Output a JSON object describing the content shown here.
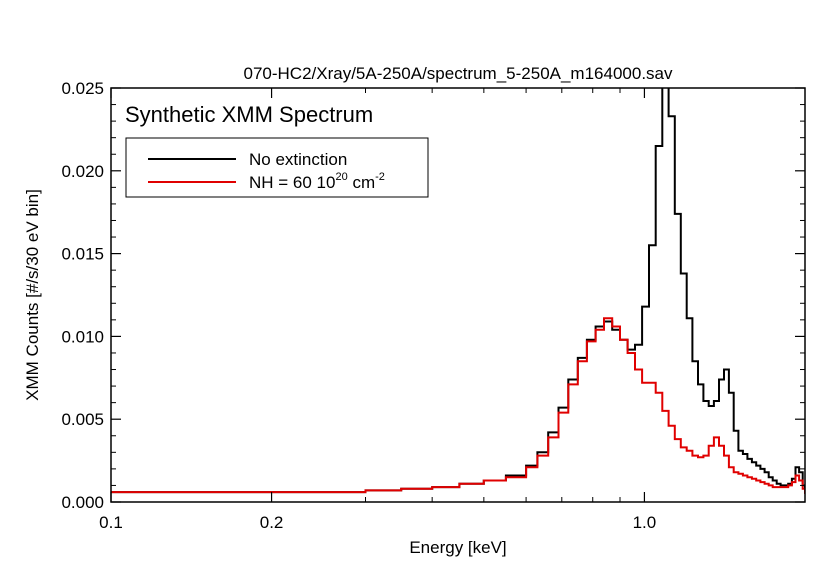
{
  "chart_data": {
    "type": "line",
    "title": "070-HC2/Xray/5A-250A/spectrum_5-250A_m164000.sav",
    "annotation": "Synthetic XMM Spectrum",
    "xlabel": "Energy [keV]",
    "ylabel": "XMM Counts [#/s/30 eV bin]",
    "x_scale": "log",
    "xlim": [
      0.1,
      2.0
    ],
    "ylim": [
      0.0,
      0.025
    ],
    "x_ticks": [
      {
        "value": 0.1,
        "label": "0.1"
      },
      {
        "value": 0.2,
        "label": "0.2"
      },
      {
        "value": 1.0,
        "label": "1.0"
      }
    ],
    "y_ticks": [
      {
        "value": 0.0,
        "label": "0.000"
      },
      {
        "value": 0.005,
        "label": "0.005"
      },
      {
        "value": 0.01,
        "label": "0.010"
      },
      {
        "value": 0.015,
        "label": "0.015"
      },
      {
        "value": 0.02,
        "label": "0.020"
      },
      {
        "value": 0.025,
        "label": "0.025"
      }
    ],
    "grid": false,
    "legend_position": "top-left",
    "series": [
      {
        "name": "No extinction",
        "color": "#000000",
        "x": [
          0.1,
          0.15,
          0.2,
          0.25,
          0.3,
          0.35,
          0.4,
          0.45,
          0.5,
          0.55,
          0.6,
          0.63,
          0.66,
          0.69,
          0.72,
          0.75,
          0.78,
          0.81,
          0.84,
          0.87,
          0.9,
          0.93,
          0.96,
          0.99,
          1.02,
          1.05,
          1.08,
          1.11,
          1.14,
          1.17,
          1.2,
          1.23,
          1.26,
          1.29,
          1.32,
          1.35,
          1.38,
          1.41,
          1.44,
          1.47,
          1.5,
          1.53,
          1.56,
          1.59,
          1.62,
          1.65,
          1.68,
          1.71,
          1.74,
          1.77,
          1.8,
          1.83,
          1.86,
          1.89,
          1.92,
          1.95,
          1.98,
          2.0
        ],
        "y": [
          0.0006,
          0.0006,
          0.0006,
          0.0006,
          0.0007,
          0.0008,
          0.0009,
          0.0011,
          0.0013,
          0.0016,
          0.0022,
          0.003,
          0.0042,
          0.0057,
          0.0074,
          0.0087,
          0.0098,
          0.0106,
          0.0109,
          0.0104,
          0.0098,
          0.0092,
          0.0095,
          0.0118,
          0.0155,
          0.0215,
          0.027,
          0.0233,
          0.0174,
          0.0138,
          0.0111,
          0.0085,
          0.0071,
          0.0061,
          0.0058,
          0.0061,
          0.0074,
          0.008,
          0.0066,
          0.0043,
          0.0031,
          0.0029,
          0.0026,
          0.0024,
          0.0022,
          0.002,
          0.0018,
          0.0015,
          0.0013,
          0.0011,
          0.001,
          0.001,
          0.0011,
          0.0014,
          0.0021,
          0.0018,
          0.001,
          0.0005
        ]
      },
      {
        "name": "NH = 60 10^20 cm^-2",
        "color": "#e00000",
        "x": [
          0.1,
          0.15,
          0.2,
          0.25,
          0.3,
          0.35,
          0.4,
          0.45,
          0.5,
          0.55,
          0.6,
          0.63,
          0.66,
          0.69,
          0.72,
          0.75,
          0.78,
          0.81,
          0.84,
          0.87,
          0.9,
          0.93,
          0.96,
          0.99,
          1.02,
          1.05,
          1.08,
          1.11,
          1.14,
          1.17,
          1.2,
          1.23,
          1.26,
          1.29,
          1.32,
          1.35,
          1.38,
          1.41,
          1.44,
          1.47,
          1.5,
          1.53,
          1.56,
          1.59,
          1.62,
          1.65,
          1.68,
          1.71,
          1.74,
          1.77,
          1.8,
          1.83,
          1.86,
          1.89,
          1.92,
          1.95,
          1.98,
          2.0
        ],
        "y": [
          0.0006,
          0.0006,
          0.0006,
          0.0006,
          0.0007,
          0.0008,
          0.0009,
          0.0011,
          0.0013,
          0.0015,
          0.0021,
          0.0028,
          0.0039,
          0.0054,
          0.0071,
          0.0085,
          0.0097,
          0.0104,
          0.0111,
          0.0106,
          0.0098,
          0.009,
          0.008,
          0.0072,
          0.0072,
          0.0066,
          0.0055,
          0.0046,
          0.0038,
          0.0033,
          0.0031,
          0.0028,
          0.0027,
          0.0028,
          0.0034,
          0.0039,
          0.0034,
          0.0028,
          0.0021,
          0.0018,
          0.0017,
          0.0016,
          0.0015,
          0.0014,
          0.0013,
          0.0012,
          0.0011,
          0.001,
          0.0009,
          0.0009,
          0.0009,
          0.0009,
          0.001,
          0.0012,
          0.0016,
          0.0013,
          0.0008,
          0.0005
        ]
      }
    ],
    "legend": [
      {
        "text": "No extinction",
        "color": "#000000"
      },
      {
        "text": "NH = 60 10",
        "sup1": "20",
        "mid": " cm",
        "sup2": "-2",
        "color": "#e00000"
      }
    ]
  }
}
